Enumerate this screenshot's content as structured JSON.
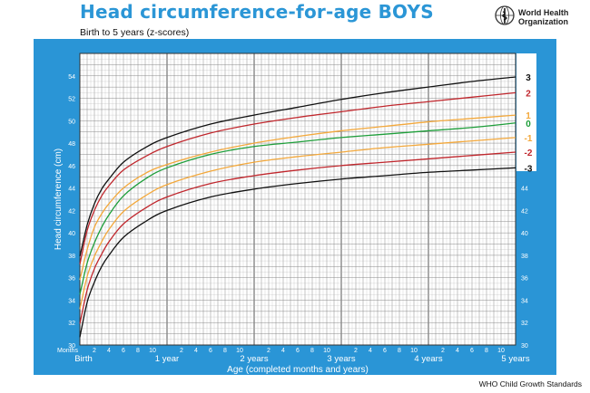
{
  "page": {
    "title": "Head circumference-for-age  BOYS",
    "subtitle": "Birth to 5 years (z-scores)",
    "org_line1": "World Health",
    "org_line2": "Organization",
    "footer": "WHO Child Growth Standards",
    "logo_icon": "who-emblem-icon"
  },
  "chart_data": {
    "type": "line",
    "title": "Head circumference-for-age  BOYS",
    "subtitle": "Birth to 5 years (z-scores)",
    "ylabel": "Head circumference (cm)",
    "xlabel": "Age (completed months and years)",
    "xlim": [
      0,
      60
    ],
    "ylim": [
      30,
      56
    ],
    "y_ticks": [
      30,
      32,
      34,
      36,
      38,
      40,
      42,
      44,
      46,
      48,
      50,
      52,
      54
    ],
    "x_months_label": "Months",
    "x_minor_ticks": [
      {
        "month": 2,
        "label": "2"
      },
      {
        "month": 4,
        "label": "4"
      },
      {
        "month": 6,
        "label": "6"
      },
      {
        "month": 8,
        "label": "8"
      },
      {
        "month": 10,
        "label": "10"
      },
      {
        "month": 14,
        "label": "2"
      },
      {
        "month": 16,
        "label": "4"
      },
      {
        "month": 18,
        "label": "6"
      },
      {
        "month": 20,
        "label": "8"
      },
      {
        "month": 22,
        "label": "10"
      },
      {
        "month": 26,
        "label": "2"
      },
      {
        "month": 28,
        "label": "4"
      },
      {
        "month": 30,
        "label": "6"
      },
      {
        "month": 32,
        "label": "8"
      },
      {
        "month": 34,
        "label": "10"
      },
      {
        "month": 38,
        "label": "2"
      },
      {
        "month": 40,
        "label": "4"
      },
      {
        "month": 42,
        "label": "6"
      },
      {
        "month": 44,
        "label": "8"
      },
      {
        "month": 46,
        "label": "10"
      },
      {
        "month": 50,
        "label": "2"
      },
      {
        "month": 52,
        "label": "4"
      },
      {
        "month": 54,
        "label": "6"
      },
      {
        "month": 56,
        "label": "8"
      },
      {
        "month": 58,
        "label": "10"
      }
    ],
    "x_major_ticks": [
      {
        "month": 0,
        "label": "Birth"
      },
      {
        "month": 12,
        "label": "1 year"
      },
      {
        "month": 24,
        "label": "2 years"
      },
      {
        "month": 36,
        "label": "3 years"
      },
      {
        "month": 48,
        "label": "4 years"
      },
      {
        "month": 60,
        "label": "5 years"
      }
    ],
    "grid": true,
    "x": [
      0,
      1,
      2,
      3,
      4,
      6,
      9,
      12,
      18,
      24,
      30,
      36,
      42,
      48,
      54,
      60
    ],
    "series": [
      {
        "name": "3",
        "color": "#111111",
        "values": [
          37.9,
          40.7,
          42.6,
          43.9,
          44.8,
          46.3,
          47.6,
          48.5,
          49.7,
          50.5,
          51.2,
          51.9,
          52.5,
          53.0,
          53.5,
          53.9
        ]
      },
      {
        "name": "2",
        "color": "#c0272d",
        "values": [
          37.2,
          40.2,
          42.0,
          43.3,
          44.2,
          45.6,
          46.8,
          47.7,
          48.9,
          49.7,
          50.3,
          50.8,
          51.3,
          51.7,
          52.1,
          52.5
        ]
      },
      {
        "name": "1",
        "color": "#f3a83b",
        "values": [
          35.8,
          38.5,
          40.5,
          41.7,
          42.6,
          44.0,
          45.3,
          46.1,
          47.2,
          48.0,
          48.6,
          49.1,
          49.5,
          49.9,
          50.2,
          50.5
        ]
      },
      {
        "name": "0",
        "color": "#1e9e3a",
        "values": [
          34.5,
          37.3,
          39.1,
          40.5,
          41.6,
          43.3,
          44.8,
          45.8,
          47.0,
          47.7,
          48.1,
          48.5,
          48.8,
          49.1,
          49.4,
          49.8
        ]
      },
      {
        "name": "-1",
        "color": "#f3a83b",
        "values": [
          33.2,
          36.1,
          37.9,
          39.2,
          40.3,
          41.9,
          43.3,
          44.3,
          45.5,
          46.3,
          46.8,
          47.2,
          47.6,
          47.9,
          48.2,
          48.5
        ]
      },
      {
        "name": "-2",
        "color": "#c0272d",
        "values": [
          31.9,
          34.9,
          36.8,
          38.1,
          39.2,
          40.8,
          42.2,
          43.2,
          44.4,
          45.1,
          45.6,
          46.0,
          46.3,
          46.6,
          46.9,
          47.2
        ]
      },
      {
        "name": "-3",
        "color": "#111111",
        "values": [
          30.7,
          33.8,
          35.6,
          37.0,
          38.0,
          39.6,
          41.0,
          42.0,
          43.2,
          43.9,
          44.4,
          44.8,
          45.1,
          45.4,
          45.6,
          45.8
        ]
      }
    ],
    "series_label_colors": {
      "3": "#111111",
      "2": "#c0272d",
      "1": "#f3a83b",
      "0": "#1e9e3a",
      "-1": "#f3a83b",
      "-2": "#c0272d",
      "-3": "#111111"
    },
    "colors": {
      "panel": "#2a95d6",
      "plot_bg": "#ffffff",
      "grid": "#8a8a8a",
      "title": "#2b96d6"
    }
  }
}
